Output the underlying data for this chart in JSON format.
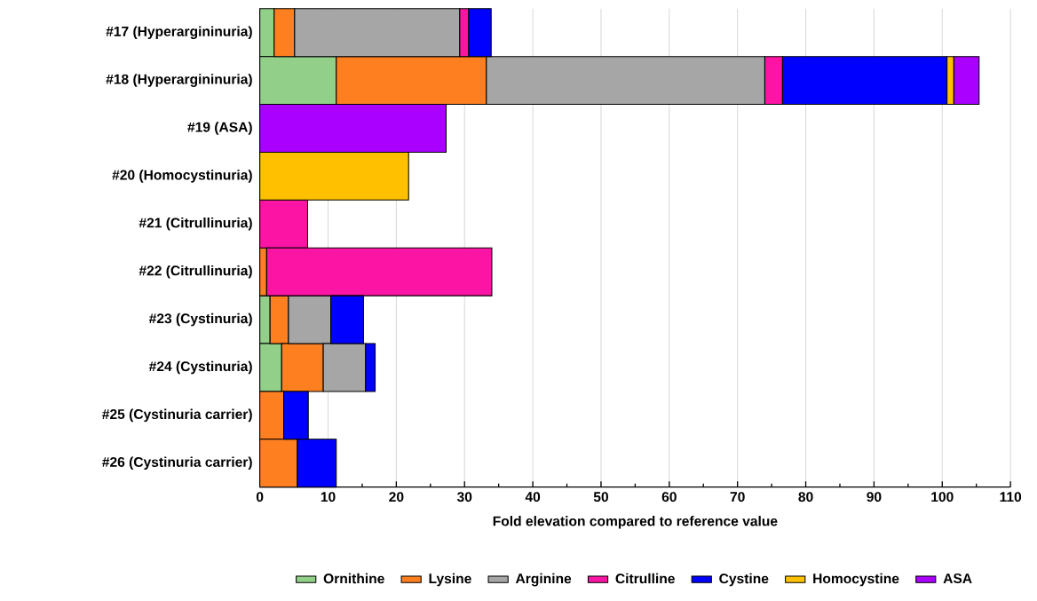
{
  "chart_data": {
    "type": "bar",
    "orientation": "horizontal",
    "stacked": true,
    "xlabel": "Fold elevation compared to reference value",
    "categories": [
      "#17 (Hyperargininuria)",
      "#18 (Hyperargininuria)",
      "#19 (ASA)",
      "#20 (Homocystinuria)",
      "#21 (Citrullinuria)",
      "#22 (Citrullinuria)",
      "#23 (Cystinuria)",
      "#24 (Cystinuria)",
      "#25 (Cystinuria carrier)",
      "#26 (Cystinuria carrier)"
    ],
    "series": [
      {
        "name": "Ornithine",
        "color": "#92d08a",
        "values": [
          2.1,
          11.2,
          null,
          null,
          null,
          null,
          1.5,
          3.2,
          null,
          null
        ]
      },
      {
        "name": "Lysine",
        "color": "#fd7f20",
        "values": [
          3.0,
          22.0,
          null,
          null,
          null,
          1.0,
          2.7,
          6.1,
          3.5,
          5.5
        ]
      },
      {
        "name": "Arginine",
        "color": "#a6a6a6",
        "values": [
          24.2,
          40.8,
          null,
          null,
          null,
          null,
          6.2,
          6.2,
          null,
          null
        ]
      },
      {
        "name": "Citrulline",
        "color": "#fc14a4",
        "values": [
          1.3,
          2.6,
          null,
          null,
          7.0,
          33.0,
          null,
          null,
          null,
          null
        ]
      },
      {
        "name": "Cystine",
        "color": "#0000ff",
        "values": [
          3.3,
          24.1,
          null,
          null,
          null,
          null,
          4.8,
          1.4,
          3.6,
          5.7
        ]
      },
      {
        "name": "Homocystine",
        "color": "#ffc000",
        "values": [
          null,
          1.0,
          null,
          21.8,
          null,
          null,
          null,
          null,
          null,
          null
        ]
      },
      {
        "name": "ASA",
        "color": "#aa00ff",
        "values": [
          null,
          3.7,
          27.3,
          null,
          null,
          null,
          null,
          null,
          null,
          null
        ]
      }
    ],
    "xlim": [
      0,
      110
    ],
    "xticks": [
      0,
      10,
      20,
      30,
      40,
      50,
      60,
      70,
      80,
      90,
      100,
      110
    ],
    "grid": "x",
    "legend": "bottom"
  }
}
